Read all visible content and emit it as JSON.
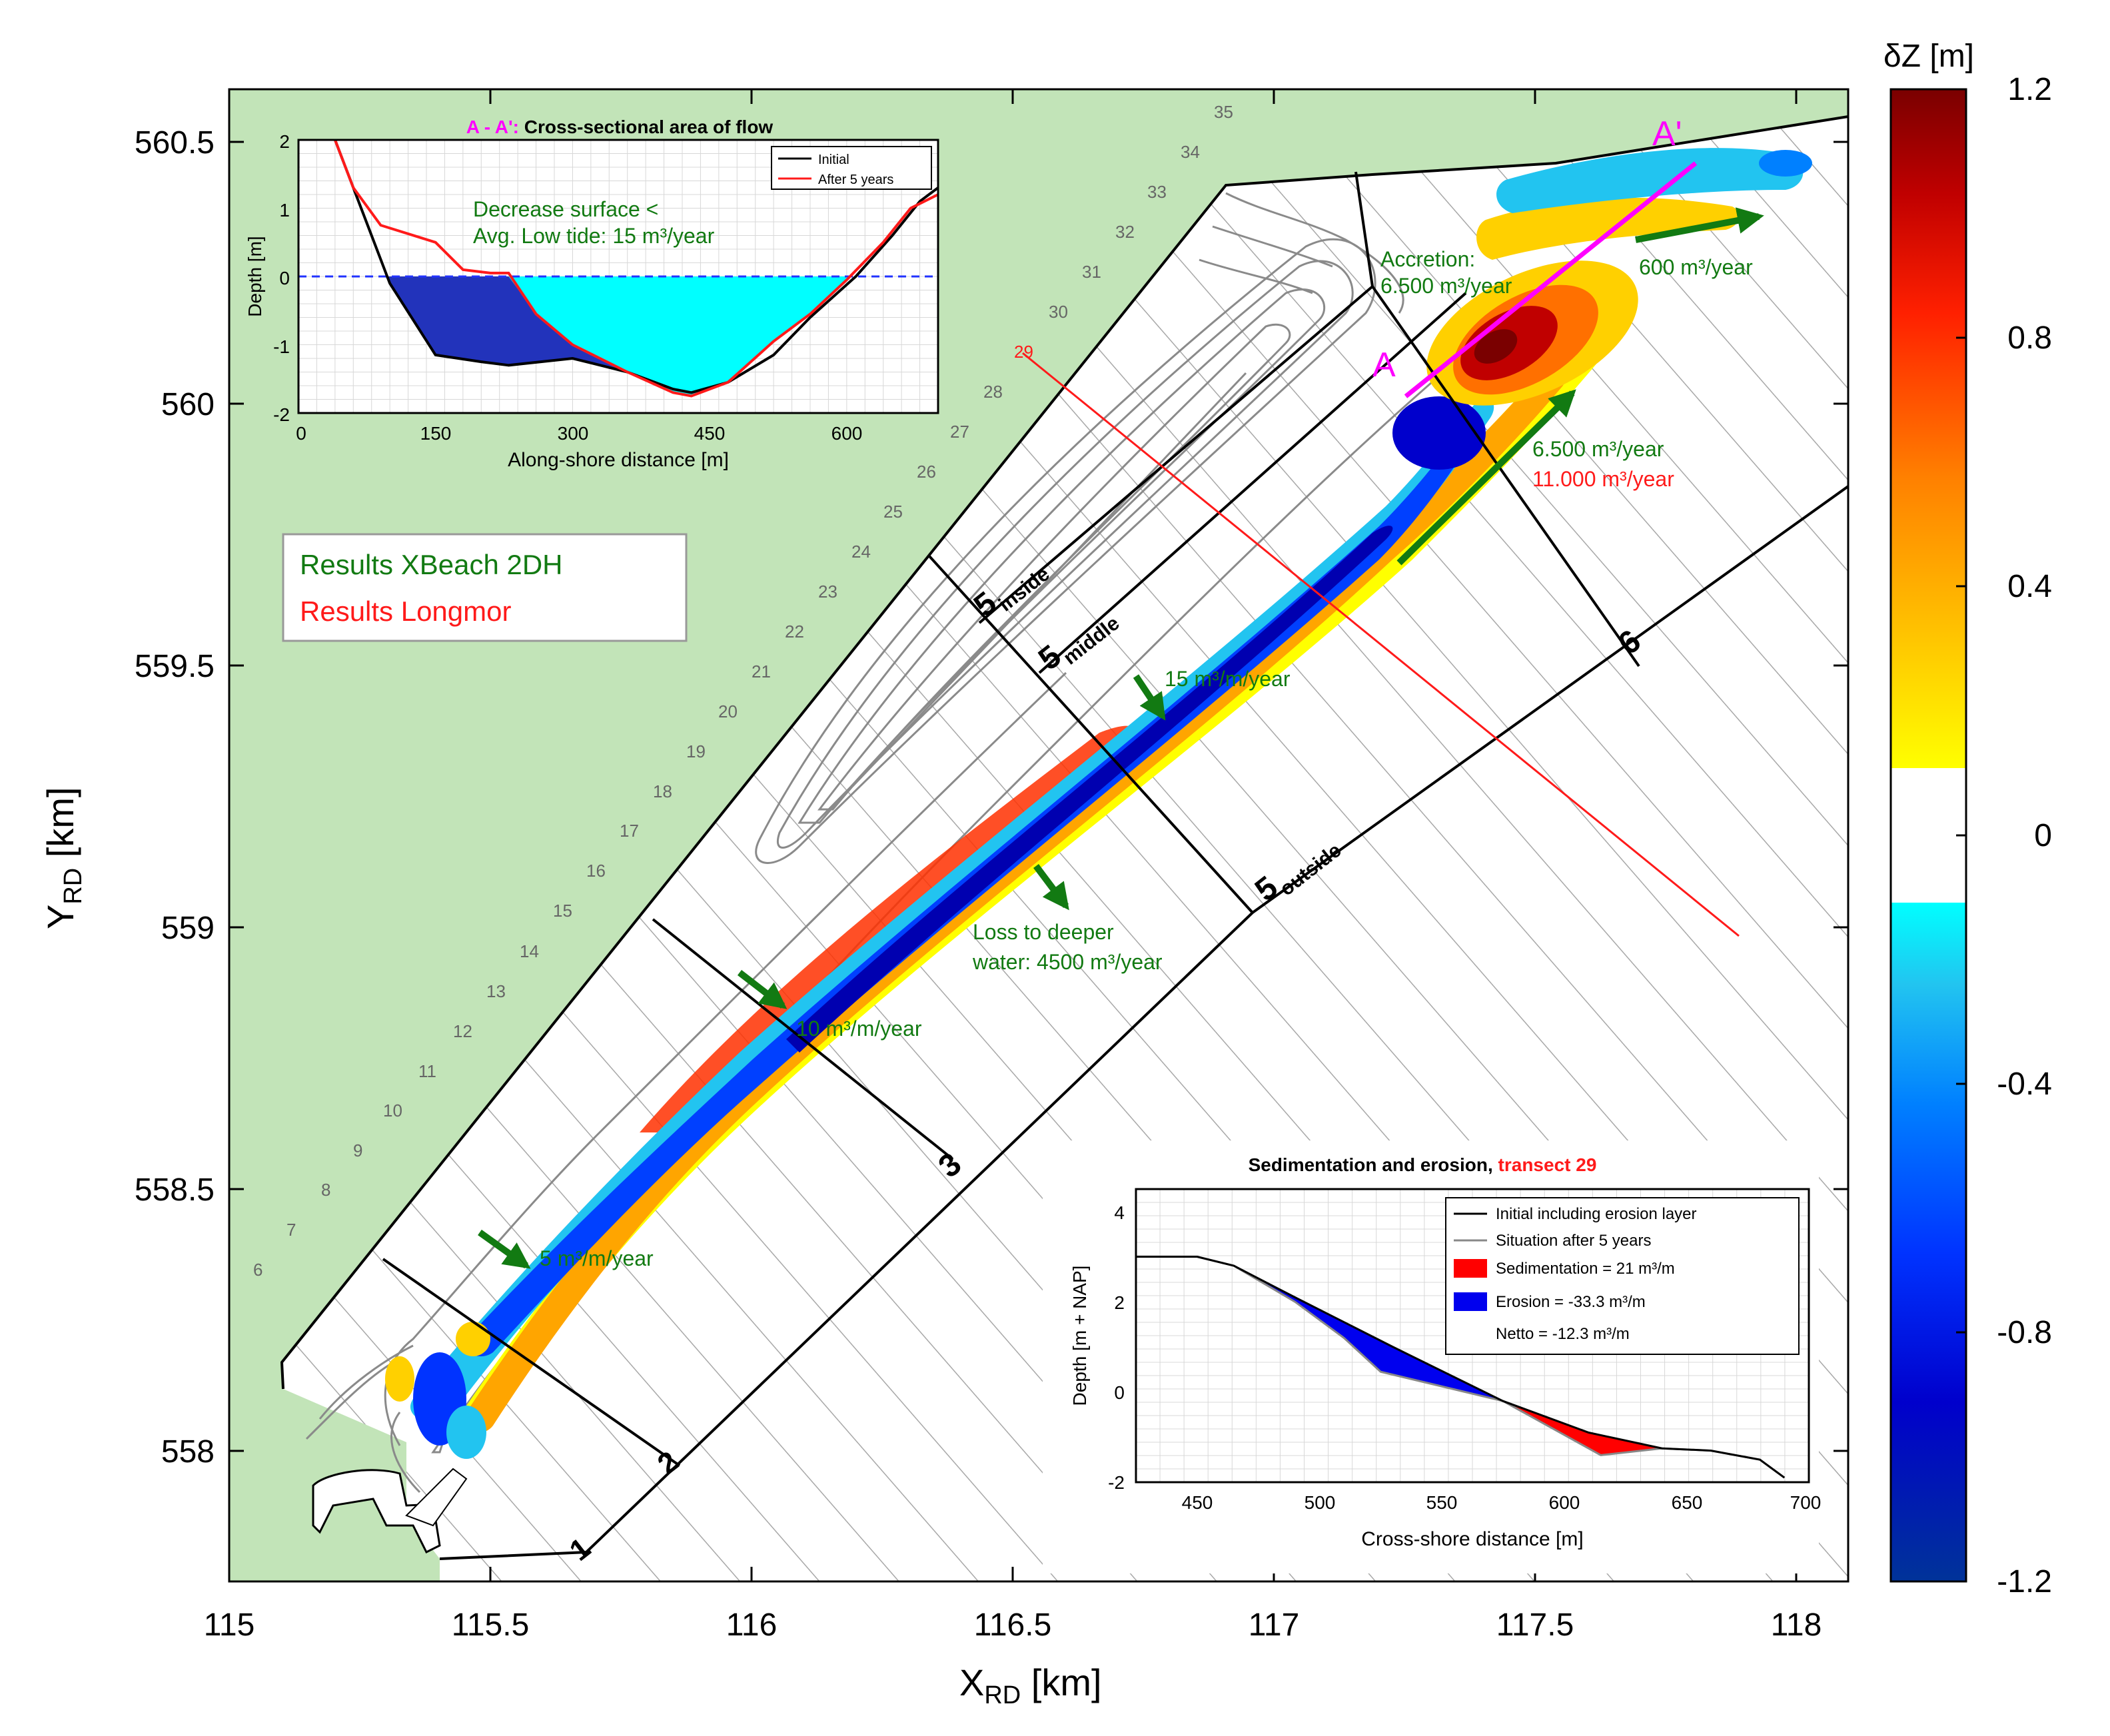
{
  "chart_data": {
    "type": "heatmap",
    "main": {
      "xlabel_main": "X",
      "xlabel_sub": "RD",
      "xlabel_unit": " [km]",
      "ylabel_main": "Y",
      "ylabel_sub": "RD",
      "ylabel_unit": " [km]",
      "xlim": [
        115,
        118.1
      ],
      "ylim": [
        557.75,
        560.6
      ],
      "xticks": [
        115,
        115.5,
        116,
        116.5,
        117,
        117.5,
        118
      ],
      "xtick_labels": [
        "115",
        "115.5",
        "116",
        "116.5",
        "117",
        "117.5",
        "118"
      ],
      "yticks": [
        558,
        558.5,
        559,
        559.5,
        560,
        560.5
      ],
      "ytick_labels": [
        "558",
        "558.5",
        "559",
        "559.5",
        "560",
        "560.5"
      ],
      "transect_numbers": [
        "6",
        "7",
        "8",
        "9",
        "10",
        "11",
        "12",
        "13",
        "14",
        "15",
        "16",
        "17",
        "18",
        "19",
        "20",
        "21",
        "22",
        "23",
        "24",
        "25",
        "26",
        "27",
        "28",
        "29",
        "30",
        "31",
        "32",
        "33",
        "34",
        "35"
      ],
      "section_labels": {
        "s1": "1",
        "s2": "2",
        "s3": "3",
        "s5i": "5",
        "s5i_sub": "inside",
        "s5m": "5",
        "s5m_sub": "middle",
        "s5o": "5",
        "s5o_sub": "outside",
        "s6": "6"
      },
      "section_A": "A",
      "section_A_prime": "A'",
      "legend": {
        "xbeach": "Results XBeach 2DH",
        "longmor": "Results Longmor"
      },
      "annotations": {
        "accretion_1": "Accretion:",
        "accretion_2": "6.500 m³/year",
        "flux_600": "600 m³/year",
        "flux_6500": "6.500 m³/year",
        "flux_11000": "11.000 m³/year",
        "rate_15": "15 m³/m/year",
        "loss_1": "Loss to deeper",
        "loss_2": "water: 4500 m³/year",
        "rate_10": "10 m³/m/year",
        "rate_5": "5 m³/m/year"
      },
      "colors": {
        "land": "#c2e4b8",
        "xbeach": "#127a12",
        "longmor": "#ff1a1a",
        "section_line": "#ff00ff"
      }
    },
    "colorbar": {
      "title": "δZ [m]",
      "range": [
        -1.2,
        1.2
      ],
      "tick_values": [
        1.2,
        0.8,
        0.4,
        0,
        -0.4,
        -0.8,
        -1.2
      ],
      "tick_labels": [
        "1.2",
        "0.8",
        "0.4",
        "0",
        "-0.4",
        "-0.8",
        "-1.2"
      ],
      "stops": [
        "#003399",
        "#0000cc",
        "#0033ff",
        "#0080ff",
        "#22c4f0",
        "#00ffff",
        "#ffffff",
        "#ffff00",
        "#ffc000",
        "#ff8000",
        "#ff2000",
        "#c00000",
        "#7a0000"
      ]
    },
    "inset1": {
      "type": "area",
      "title_prefix": "A - A':",
      "title_main": "Cross-sectional area of flow",
      "xlabel": "Along-shore distance [m]",
      "ylabel": "Depth [m]",
      "xlim": [
        0,
        700
      ],
      "ylim": [
        -2,
        2
      ],
      "xtick_labels": [
        "0",
        "150",
        "300",
        "450",
        "600"
      ],
      "ytick_labels": [
        "2",
        "1",
        "0",
        "-1",
        "-2"
      ],
      "note_1": "Decrease surface <",
      "note_2": "Avg. Low tide: 15 m³/year",
      "legend": [
        "Initial",
        "After 5 years"
      ],
      "series": [
        {
          "name": "Initial",
          "x": [
            40,
            80,
            100,
            150,
            200,
            230,
            300,
            360,
            410,
            430,
            470,
            520,
            560,
            610,
            650,
            680,
            700
          ],
          "y": [
            2.0,
            0.6,
            -0.1,
            -1.15,
            -1.25,
            -1.3,
            -1.2,
            -1.4,
            -1.65,
            -1.7,
            -1.55,
            -1.15,
            -0.6,
            0.0,
            0.6,
            1.1,
            1.3
          ]
        },
        {
          "name": "After 5 years",
          "x": [
            40,
            60,
            90,
            150,
            180,
            210,
            230,
            260,
            300,
            360,
            410,
            430,
            470,
            520,
            560,
            600,
            640,
            670,
            700
          ],
          "y": [
            2.0,
            1.3,
            0.75,
            0.5,
            0.1,
            0.05,
            0.05,
            -0.55,
            -1.0,
            -1.4,
            -1.7,
            -1.75,
            -1.55,
            -0.95,
            -0.55,
            -0.05,
            0.5,
            1.0,
            1.2
          ]
        }
      ]
    },
    "inset2": {
      "type": "area",
      "title_main": "Sedimentation and erosion,",
      "title_red": "transect 29",
      "xlabel": "Cross-shore distance [m]",
      "ylabel": "Depth [m + NAP]",
      "xlim": [
        425,
        700
      ],
      "ylim": [
        -2,
        4.5
      ],
      "xtick_labels": [
        "450",
        "500",
        "550",
        "600",
        "650",
        "700"
      ],
      "ytick_labels": [
        "4",
        "2",
        "0",
        "-2"
      ],
      "legend": [
        "Initial including erosion layer",
        "Situation after 5 years",
        "Sedimentation = 21 m³/m",
        "Erosion = -33.3 m³/m",
        "Netto = -12.3 m³/m"
      ],
      "series": [
        {
          "name": "Initial including erosion layer",
          "x": [
            425,
            450,
            465,
            490,
            510,
            530,
            575,
            610,
            640,
            660,
            680,
            690
          ],
          "y": [
            3.0,
            3.0,
            2.8,
            2.1,
            1.55,
            1.0,
            -0.2,
            -0.9,
            -1.25,
            -1.3,
            -1.5,
            -1.9
          ]
        },
        {
          "name": "Situation after 5 years",
          "x": [
            425,
            450,
            465,
            490,
            510,
            525,
            575,
            615,
            640,
            660,
            680,
            690
          ],
          "y": [
            3.0,
            3.0,
            2.8,
            2.0,
            1.2,
            0.45,
            -0.2,
            -1.4,
            -1.25,
            -1.3,
            -1.5,
            -1.9
          ]
        }
      ]
    }
  }
}
